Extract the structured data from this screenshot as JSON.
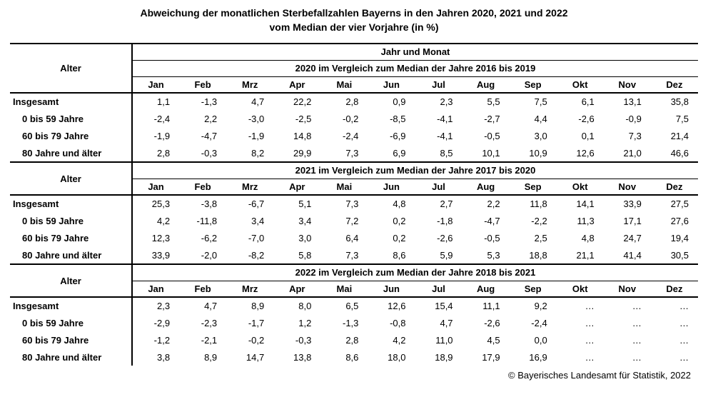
{
  "title": {
    "line1": "Abweichung der monatlichen Sterbefallzahlen Bayerns in den Jahren 2020, 2021 und 2022",
    "line2": "vom Median der vier Vorjahre (in %)"
  },
  "labels": {
    "alter": "Alter",
    "jahr_und_monat": "Jahr und Monat"
  },
  "footer": "© Bayerisches Landesamt für Statistik, 2022",
  "colors": {
    "text": "#000000",
    "background": "#ffffff",
    "rule": "#000000"
  },
  "chart_data": {
    "type": "table",
    "title": "Abweichung der monatlichen Sterbefallzahlen Bayerns in den Jahren 2020, 2021 und 2022 vom Median der vier Vorjahre (in %)",
    "months": [
      "Jan",
      "Feb",
      "Mrz",
      "Apr",
      "Mai",
      "Jun",
      "Jul",
      "Aug",
      "Sep",
      "Okt",
      "Nov",
      "Dez"
    ],
    "sections": [
      {
        "year": "2020",
        "year_header": "2020 im Vergleich zum Median der Jahre 2016 bis 2019",
        "rows": [
          {
            "label": "Insgesamt",
            "indent": false,
            "values": [
              "1,1",
              "-1,3",
              "4,7",
              "22,2",
              "2,8",
              "0,9",
              "2,3",
              "5,5",
              "7,5",
              "6,1",
              "13,1",
              "35,8"
            ]
          },
          {
            "label": "0 bis 59 Jahre",
            "indent": true,
            "values": [
              "-2,4",
              "2,2",
              "-3,0",
              "-2,5",
              "-0,2",
              "-8,5",
              "-4,1",
              "-2,7",
              "4,4",
              "-2,6",
              "-0,9",
              "7,5"
            ]
          },
          {
            "label": "60 bis 79 Jahre",
            "indent": true,
            "values": [
              "-1,9",
              "-4,7",
              "-1,9",
              "14,8",
              "-2,4",
              "-6,9",
              "-4,1",
              "-0,5",
              "3,0",
              "0,1",
              "7,3",
              "21,4"
            ]
          },
          {
            "label": "80 Jahre und älter",
            "indent": true,
            "values": [
              "2,8",
              "-0,3",
              "8,2",
              "29,9",
              "7,3",
              "6,9",
              "8,5",
              "10,1",
              "10,9",
              "12,6",
              "21,0",
              "46,6"
            ]
          }
        ]
      },
      {
        "year": "2021",
        "year_header": "2021 im Vergleich zum Median der Jahre 2017 bis 2020",
        "rows": [
          {
            "label": "Insgesamt",
            "indent": false,
            "values": [
              "25,3",
              "-3,8",
              "-6,7",
              "5,1",
              "7,3",
              "4,8",
              "2,7",
              "2,2",
              "11,8",
              "14,1",
              "33,9",
              "27,5"
            ]
          },
          {
            "label": "0 bis 59 Jahre",
            "indent": true,
            "values": [
              "4,2",
              "-11,8",
              "3,4",
              "3,4",
              "7,2",
              "0,2",
              "-1,8",
              "-4,7",
              "-2,2",
              "11,3",
              "17,1",
              "27,6"
            ]
          },
          {
            "label": "60 bis 79 Jahre",
            "indent": true,
            "values": [
              "12,3",
              "-6,2",
              "-7,0",
              "3,0",
              "6,4",
              "0,2",
              "-2,6",
              "-0,5",
              "2,5",
              "4,8",
              "24,7",
              "19,4"
            ]
          },
          {
            "label": "80 Jahre und älter",
            "indent": true,
            "values": [
              "33,9",
              "-2,0",
              "-8,2",
              "5,8",
              "7,3",
              "8,6",
              "5,9",
              "5,3",
              "18,8",
              "21,1",
              "41,4",
              "30,5"
            ]
          }
        ]
      },
      {
        "year": "2022",
        "year_header": "2022 im Vergleich zum Median der Jahre 2018 bis 2021",
        "rows": [
          {
            "label": "Insgesamt",
            "indent": false,
            "values": [
              "2,3",
              "4,7",
              "8,9",
              "8,0",
              "6,5",
              "12,6",
              "15,4",
              "11,1",
              "9,2",
              "…",
              "…",
              "…"
            ]
          },
          {
            "label": "0 bis 59 Jahre",
            "indent": true,
            "values": [
              "-2,9",
              "-2,3",
              "-1,7",
              "1,2",
              "-1,3",
              "-0,8",
              "4,7",
              "-2,6",
              "-2,4",
              "…",
              "…",
              "…"
            ]
          },
          {
            "label": "60 bis 79 Jahre",
            "indent": true,
            "values": [
              "-1,2",
              "-2,1",
              "-0,2",
              "-0,3",
              "2,8",
              "4,2",
              "11,0",
              "4,5",
              "0,0",
              "…",
              "…",
              "…"
            ]
          },
          {
            "label": "80 Jahre und älter",
            "indent": true,
            "values": [
              "3,8",
              "8,9",
              "14,7",
              "13,8",
              "8,6",
              "18,0",
              "18,9",
              "17,9",
              "16,9",
              "…",
              "…",
              "…"
            ]
          }
        ]
      }
    ]
  }
}
